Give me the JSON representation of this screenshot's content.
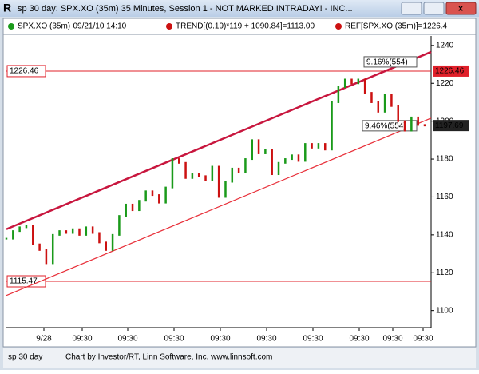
{
  "window": {
    "title": "sp 30 day: SPX.XO (35m) 35 Minutes, Session 1 - NOT MARKED INTRADAY! - INC...",
    "legend": [
      "SPX.XO (35m)-09/21/10 14:10",
      "TREND[(0.19)*119 + 1090.84]=1113.00",
      "REF[SPX.XO (35m)]=1226.4"
    ],
    "status_left": "sp 30 day",
    "status_text": "Chart by Investor/RT, Linn Software, Inc. www.linnsoft.com"
  },
  "chart_data": {
    "type": "line",
    "values": [
      1138,
      1142,
      1144,
      1145,
      1135,
      1132,
      1125,
      1140,
      1142,
      1141,
      1143,
      1140,
      1144,
      1141,
      1136,
      1132,
      1140,
      1150,
      1156,
      1153,
      1158,
      1163,
      1161,
      1157,
      1165,
      1180,
      1178,
      1170,
      1172,
      1171,
      1169,
      1176,
      1160,
      1168,
      1175,
      1173,
      1180,
      1190,
      1183,
      1185,
      1172,
      1178,
      1180,
      1182,
      1179,
      1188,
      1186,
      1188,
      1185,
      1210,
      1218,
      1222,
      1220,
      1222,
      1215,
      1210,
      1205,
      1214,
      1208,
      1200,
      1195,
      1202,
      1198,
      1197.69
    ],
    "up_color": "#1a9a1a",
    "down_color": "#cc1111",
    "ylim": [
      1091,
      1245
    ],
    "yticks": [
      1100,
      1120,
      1140,
      1160,
      1180,
      1200,
      1220,
      1240
    ],
    "x_labels": [
      "9/28",
      "09:30",
      "09:30",
      "09:30",
      "09:30",
      "09:30",
      "09:30",
      "09:30",
      "09:30",
      "09:30"
    ],
    "ref_lines": [
      1226.46,
      1115.47
    ],
    "ref_color": "#e0202a",
    "channel": [
      {
        "start": 1143,
        "end": 1236.6,
        "color": "#c8163e",
        "label": "9.16%(554)"
      },
      {
        "start": 1108,
        "end": 1201.6,
        "color": "#e8303a",
        "label": "9.46%(554)"
      }
    ]
  }
}
